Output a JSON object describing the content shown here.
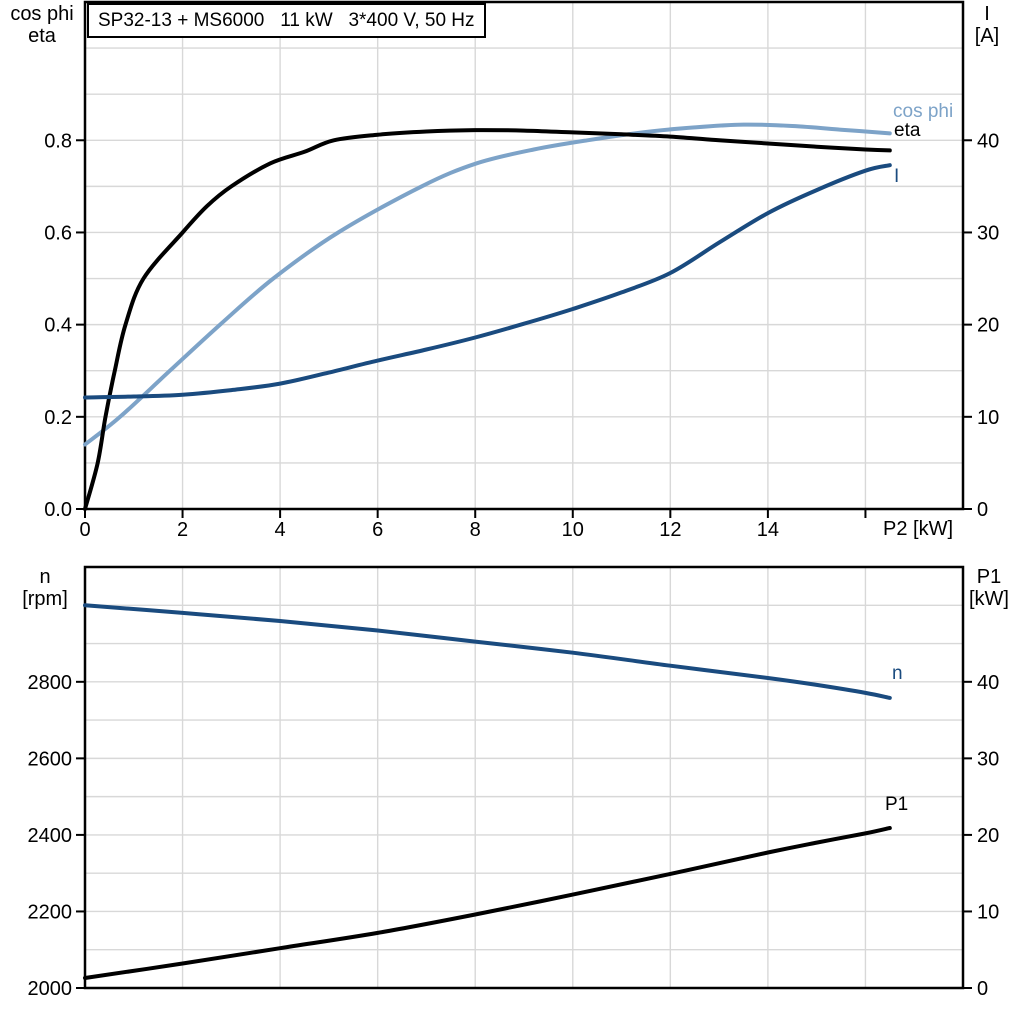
{
  "colors": {
    "black": "#000000",
    "dark_blue": "#1a4b7f",
    "light_blue": "#7da3c8",
    "grid": "#d8d8d8",
    "frame": "#000000",
    "background": "#ffffff"
  },
  "chart_data": [
    {
      "type": "line",
      "title": "SP32-13 + MS6000   11 kW   3*400 V, 50 Hz",
      "x_axis": {
        "label": "P2 [kW]",
        "min": 0,
        "max": 18,
        "ticks": [
          {
            "v": 0,
            "label": "0"
          },
          {
            "v": 2,
            "label": "2"
          },
          {
            "v": 4,
            "label": "4"
          },
          {
            "v": 6,
            "label": "6"
          },
          {
            "v": 8,
            "label": "8"
          },
          {
            "v": 10,
            "label": "10"
          },
          {
            "v": 12,
            "label": "12"
          },
          {
            "v": 14,
            "label": "14"
          },
          {
            "v": 16,
            "label": ""
          }
        ],
        "gridline_step": 2,
        "grid_on": true
      },
      "left_axis": {
        "label_lines": [
          "cos phi",
          "eta"
        ],
        "min": 0,
        "max": 1.1,
        "minor_step": 0.1,
        "ticks": [
          {
            "v": 0,
            "label": "0.0"
          },
          {
            "v": 0.2,
            "label": "0.2"
          },
          {
            "v": 0.4,
            "label": "0.4"
          },
          {
            "v": 0.6,
            "label": "0.6"
          },
          {
            "v": 0.8,
            "label": "0.8"
          }
        ]
      },
      "right_axis": {
        "label_lines": [
          "I",
          "[A]"
        ],
        "min": 0,
        "max": 55,
        "minor_step": 5,
        "ticks": [
          {
            "v": 0,
            "label": "0"
          },
          {
            "v": 10,
            "label": "10"
          },
          {
            "v": 20,
            "label": "20"
          },
          {
            "v": 30,
            "label": "30"
          },
          {
            "v": 40,
            "label": "40"
          }
        ]
      },
      "series": [
        {
          "name": "cos phi",
          "label": "cos phi",
          "axis": "left",
          "color": "#7da3c8",
          "width": 4,
          "points": [
            [
              0,
              0.14
            ],
            [
              0.72,
              0.2
            ],
            [
              1.74,
              0.3
            ],
            [
              2.77,
              0.4
            ],
            [
              3.86,
              0.5
            ],
            [
              5.19,
              0.6
            ],
            [
              6.9,
              0.7
            ],
            [
              8.03,
              0.75
            ],
            [
              9.2,
              0.78
            ],
            [
              10.3,
              0.8
            ],
            [
              11.5,
              0.818
            ],
            [
              12.5,
              0.828
            ],
            [
              13.5,
              0.834
            ],
            [
              14.5,
              0.831
            ],
            [
              15.5,
              0.823
            ],
            [
              16.5,
              0.815
            ]
          ]
        },
        {
          "name": "eta",
          "label": "eta",
          "axis": "left",
          "color": "#000000",
          "width": 4,
          "points": [
            [
              0,
              0
            ],
            [
              0.26,
              0.1
            ],
            [
              0.42,
              0.2
            ],
            [
              0.61,
              0.3
            ],
            [
              0.83,
              0.4
            ],
            [
              1.2,
              0.5
            ],
            [
              2,
              0.6
            ],
            [
              2.5,
              0.657
            ],
            [
              3,
              0.7
            ],
            [
              3.8,
              0.75
            ],
            [
              4.5,
              0.775
            ],
            [
              5.1,
              0.8
            ],
            [
              6,
              0.812
            ],
            [
              7,
              0.819
            ],
            [
              8,
              0.822
            ],
            [
              9,
              0.821
            ],
            [
              10,
              0.817
            ],
            [
              11,
              0.813
            ],
            [
              12,
              0.808
            ],
            [
              13,
              0.8
            ],
            [
              14,
              0.793
            ],
            [
              15,
              0.786
            ],
            [
              16,
              0.78
            ],
            [
              16.5,
              0.778
            ]
          ]
        },
        {
          "name": "I",
          "label": "I",
          "axis": "right",
          "color": "#1a4b7f",
          "width": 4,
          "points": [
            [
              0,
              12.1
            ],
            [
              1,
              12.2
            ],
            [
              2,
              12.4
            ],
            [
              3,
              12.9
            ],
            [
              4,
              13.6
            ],
            [
              5,
              14.8
            ],
            [
              6,
              16.1
            ],
            [
              7,
              17.3
            ],
            [
              8,
              18.6
            ],
            [
              9,
              20.1
            ],
            [
              10,
              21.7
            ],
            [
              11,
              23.5
            ],
            [
              12,
              25.6
            ],
            [
              13,
              28.9
            ],
            [
              14,
              32.1
            ],
            [
              15,
              34.6
            ],
            [
              16,
              36.7
            ],
            [
              16.5,
              37.3
            ]
          ]
        }
      ]
    },
    {
      "type": "line",
      "title": "",
      "x_axis": {
        "label": "",
        "min": 0,
        "max": 18,
        "ticks": [],
        "gridline_step": 2,
        "grid_on": true
      },
      "left_axis": {
        "label_lines": [
          "n",
          "[rpm]"
        ],
        "min": 2000,
        "max": 3100,
        "minor_step": 100,
        "ticks": [
          {
            "v": 2000,
            "label": "2000"
          },
          {
            "v": 2200,
            "label": "2200"
          },
          {
            "v": 2400,
            "label": "2400"
          },
          {
            "v": 2600,
            "label": "2600"
          },
          {
            "v": 2800,
            "label": "2800"
          }
        ]
      },
      "right_axis": {
        "label_lines": [
          "P1",
          "[kW]"
        ],
        "min": 0,
        "max": 55,
        "minor_step": 5,
        "ticks": [
          {
            "v": 0,
            "label": "0"
          },
          {
            "v": 10,
            "label": "10"
          },
          {
            "v": 20,
            "label": "20"
          },
          {
            "v": 30,
            "label": "30"
          },
          {
            "v": 40,
            "label": "40"
          }
        ]
      },
      "series": [
        {
          "name": "n",
          "label": "n",
          "axis": "left",
          "color": "#1a4b7f",
          "width": 4,
          "points": [
            [
              0,
              3000
            ],
            [
              2,
              2980
            ],
            [
              4,
              2959
            ],
            [
              6,
              2934
            ],
            [
              8,
              2905
            ],
            [
              10,
              2876
            ],
            [
              12,
              2842
            ],
            [
              14,
              2810
            ],
            [
              15,
              2792
            ],
            [
              16,
              2771
            ],
            [
              16.5,
              2758
            ]
          ]
        },
        {
          "name": "P1",
          "label": "P1",
          "axis": "right",
          "color": "#000000",
          "width": 4,
          "points": [
            [
              0,
              1.3
            ],
            [
              2,
              3.2
            ],
            [
              4,
              5.2
            ],
            [
              6,
              7.2
            ],
            [
              8,
              9.6
            ],
            [
              10,
              12.2
            ],
            [
              12,
              14.9
            ],
            [
              14,
              17.7
            ],
            [
              15,
              19.0
            ],
            [
              16,
              20.2
            ],
            [
              16.5,
              20.9
            ]
          ]
        }
      ]
    }
  ]
}
